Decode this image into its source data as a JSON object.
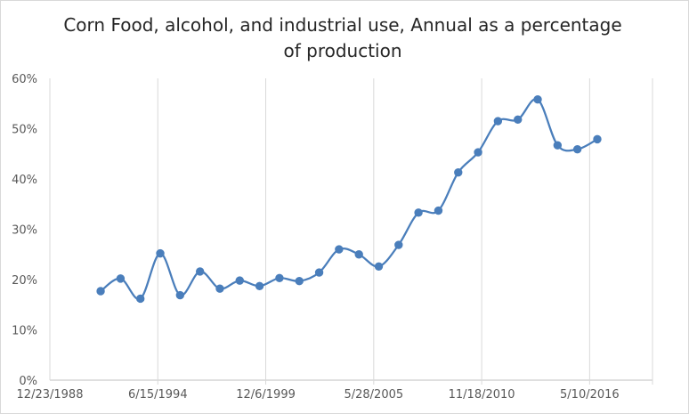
{
  "chart_data": {
    "type": "line",
    "title": "Corn Food, alcohol, and industrial use, Annual as a percentage of production",
    "xlabel": "",
    "ylabel": "",
    "x_ticks": [
      "12/23/1988",
      "6/15/1994",
      "12/6/1999",
      "5/28/2005",
      "11/18/2010",
      "5/10/2016"
    ],
    "y_ticks": [
      "0%",
      "10%",
      "20%",
      "30%",
      "40%",
      "50%",
      "60%"
    ],
    "ylim": [
      0,
      0.6
    ],
    "xlim": [
      "1988-12-23",
      "2019-04-26"
    ],
    "grid": "vertical",
    "series": [
      {
        "color": "#4a7ebb",
        "x": [
          "1991-07-15",
          "1992-07-15",
          "1993-07-15",
          "1994-07-15",
          "1995-07-15",
          "1996-07-15",
          "1997-07-15",
          "1998-07-15",
          "1999-07-15",
          "2000-07-15",
          "2001-07-15",
          "2002-07-15",
          "2003-07-15",
          "2004-07-15",
          "2005-07-15",
          "2006-07-15",
          "2007-07-15",
          "2008-07-15",
          "2009-07-15",
          "2010-07-15",
          "2011-07-15",
          "2012-07-15",
          "2013-07-15",
          "2014-07-15",
          "2015-07-15",
          "2016-07-15"
        ],
        "values": [
          0.177,
          0.202,
          0.162,
          0.252,
          0.169,
          0.216,
          0.182,
          0.198,
          0.187,
          0.203,
          0.197,
          0.214,
          0.26,
          0.25,
          0.226,
          0.269,
          0.333,
          0.337,
          0.413,
          0.453,
          0.515,
          0.518,
          0.558,
          0.467,
          0.459,
          0.479
        ]
      }
    ]
  }
}
